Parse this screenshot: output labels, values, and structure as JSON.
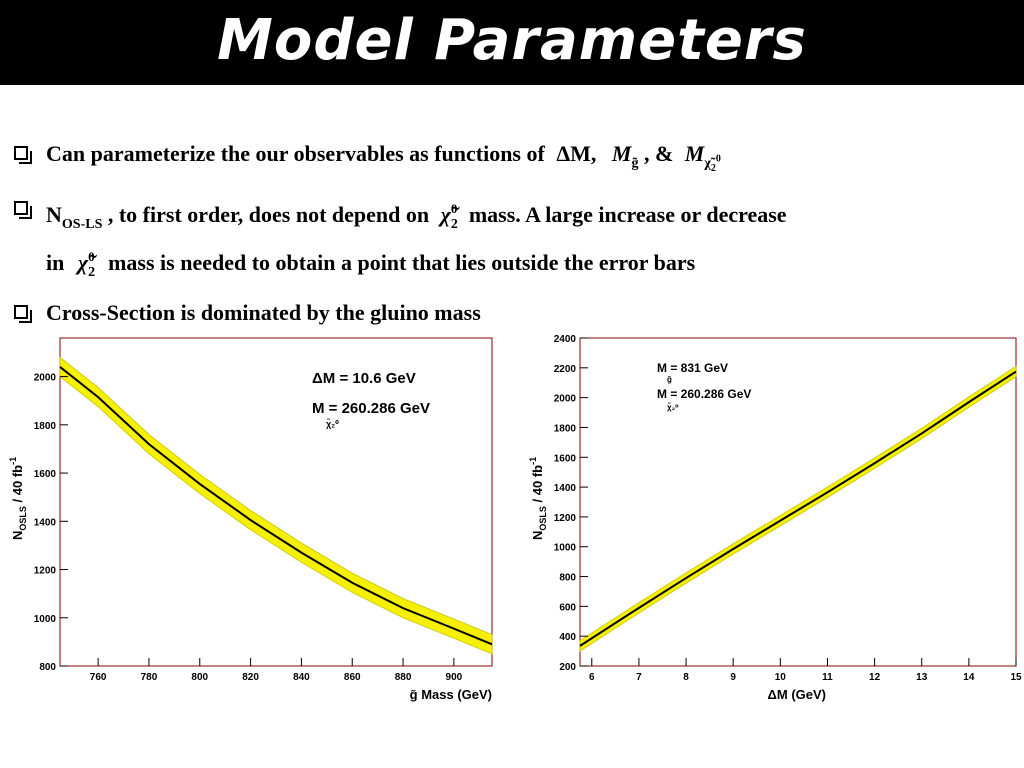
{
  "title": "Model Parameters",
  "bullets": {
    "b1_text": "Can parameterize the our observables as functions of",
    "b1_dm": "ΔM,",
    "b1_amp": ", &",
    "b2_n": "N",
    "b2_n_sub": "OS-LS",
    "b2_text_a": ", to first order, does not depend on",
    "b2_text_b": "mass. A large increase or decrease",
    "b2_line2_in": "in",
    "b2_line2_text": "mass is needed to obtain a point that lies outside the error bars",
    "b3_text": "Cross-Section is dominated by the gluino mass"
  },
  "colors": {
    "band": "#f5f000",
    "band_edge": "#c8c400",
    "line": "#000000",
    "frame": "#8b0000"
  },
  "chart_data": [
    {
      "type": "line",
      "title": "",
      "xlabel": "g̃ Mass (GeV)",
      "ylabel": "N_OSLS / 40 fb^-1",
      "xlim": [
        745,
        915
      ],
      "ylim": [
        800,
        2160
      ],
      "xticks": [
        760,
        780,
        800,
        820,
        840,
        860,
        880,
        900
      ],
      "yticks": [
        800,
        1000,
        1200,
        1400,
        1600,
        1800,
        2000
      ],
      "annotations": [
        "ΔM = 10.6 GeV",
        "M = 260.286 GeV"
      ],
      "annotation_sub": "χ̃₂⁰",
      "series": [
        {
          "x": [
            745,
            760,
            780,
            800,
            820,
            840,
            860,
            880,
            900,
            915
          ],
          "y": [
            2040,
            1915,
            1720,
            1555,
            1405,
            1270,
            1145,
            1040,
            955,
            890
          ],
          "band": 40
        }
      ]
    },
    {
      "type": "line",
      "title": "",
      "xlabel": "ΔM (GeV)",
      "ylabel": "N_OSLS / 40 fb^-1",
      "xlim": [
        5.75,
        15
      ],
      "ylim": [
        200,
        2400
      ],
      "xticks": [
        6,
        7,
        8,
        9,
        10,
        11,
        12,
        13,
        14,
        15
      ],
      "yticks": [
        200,
        400,
        600,
        800,
        1000,
        1200,
        1400,
        1600,
        1800,
        2000,
        2200,
        2400
      ],
      "annotations": [
        "M = 831 GeV",
        "M = 260.286 GeV"
      ],
      "annotation_subs": [
        "g̃",
        "χ̃₂⁰"
      ],
      "series": [
        {
          "x": [
            5.75,
            7,
            8,
            9,
            10,
            11,
            12,
            13,
            14,
            15
          ],
          "y": [
            335,
            590,
            790,
            985,
            1175,
            1365,
            1560,
            1760,
            1970,
            2175
          ],
          "band": 35
        }
      ]
    }
  ]
}
